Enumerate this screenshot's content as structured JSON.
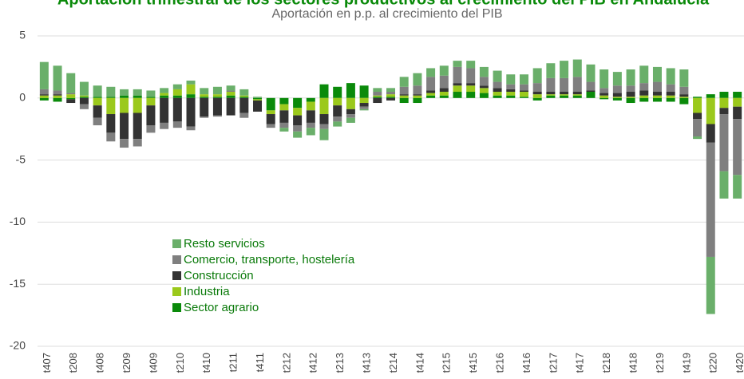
{
  "chart_data": {
    "type": "stacked_bar",
    "title": "Aportación trimestral de los sectores productivos al crecimiento del PIB en Andalucía",
    "subtitle": "Aportación en p.p. al crecimiento del PIB",
    "categories": [
      "t407",
      null,
      "t208",
      null,
      "t408",
      null,
      "t209",
      null,
      "t409",
      null,
      "t210",
      null,
      "t410",
      null,
      "t211",
      null,
      "t411",
      null,
      "t212",
      null,
      "t412",
      null,
      "t213",
      null,
      "t413",
      null,
      "t214",
      null,
      "t414",
      null,
      "t215",
      null,
      "t415",
      null,
      "t216",
      null,
      "t416",
      null,
      "t217",
      null,
      "t417",
      null,
      "t218",
      null,
      "t418",
      null,
      "t219",
      null,
      "t419",
      null,
      "t220",
      null,
      "t420"
    ],
    "series": [
      {
        "name": "Resto servicios",
        "color": "#6aaf6a",
        "values": [
          2.2,
          2.0,
          1.6,
          1.1,
          0.9,
          0.8,
          0.5,
          0.5,
          0.5,
          0.4,
          0.4,
          0.3,
          0.5,
          0.6,
          0.4,
          0.5,
          0.1,
          0.0,
          -0.3,
          -0.5,
          -0.6,
          -0.9,
          -0.4,
          -0.4,
          -0.1,
          0.3,
          0.3,
          0.8,
          1.0,
          0.7,
          0.8,
          0.5,
          0.6,
          0.8,
          0.9,
          0.8,
          0.8,
          1.2,
          1.2,
          1.4,
          1.4,
          1.4,
          1.5,
          1.1,
          1.3,
          1.4,
          1.2,
          1.3,
          1.4,
          -0.2,
          -4.6,
          -2.2,
          -1.9
        ]
      },
      {
        "name": "Comercio, transporte, hostelería",
        "color": "#7f7f7f",
        "values": [
          0.4,
          0.3,
          0.1,
          -0.4,
          -0.6,
          -0.7,
          -0.7,
          -0.6,
          -0.6,
          -0.5,
          -0.5,
          -0.3,
          -0.1,
          -0.1,
          0.1,
          -0.4,
          0.0,
          -0.3,
          -0.4,
          -0.5,
          -0.4,
          -0.4,
          -0.4,
          -0.3,
          -0.2,
          0.3,
          0.2,
          0.6,
          0.7,
          1.1,
          1.0,
          1.3,
          1.2,
          0.7,
          0.5,
          0.4,
          0.5,
          0.7,
          1.1,
          1.1,
          1.2,
          0.7,
          0.4,
          0.6,
          0.5,
          0.6,
          0.8,
          0.6,
          0.6,
          -1.4,
          -9.2,
          -4.6,
          -4.5
        ]
      },
      {
        "name": "Construcción",
        "color": "#333333",
        "values": [
          0.1,
          0.1,
          -0.3,
          -0.5,
          -1.0,
          -1.5,
          -2.1,
          -2.1,
          -1.6,
          -2.0,
          -1.9,
          -2.3,
          -1.5,
          -1.4,
          -1.4,
          -1.2,
          -0.9,
          -0.8,
          -1.0,
          -0.8,
          -1.0,
          -0.8,
          -0.9,
          -0.4,
          -0.3,
          -0.4,
          -0.2,
          0.1,
          0.1,
          0.2,
          0.3,
          0.2,
          0.2,
          0.2,
          0.3,
          0.2,
          0.1,
          0.2,
          0.2,
          0.2,
          0.2,
          0.1,
          0.2,
          0.3,
          0.4,
          0.4,
          0.3,
          0.3,
          0.2,
          -0.5,
          -1.5,
          -0.5,
          -1.0
        ]
      },
      {
        "name": "Industria",
        "color": "#9bc91c",
        "values": [
          0.2,
          0.2,
          0.3,
          0.1,
          -0.6,
          -1.3,
          -1.2,
          -1.2,
          -0.6,
          0.2,
          0.5,
          0.8,
          0.2,
          0.2,
          0.3,
          0.1,
          -0.1,
          -0.3,
          -0.5,
          -0.6,
          -0.7,
          -1.3,
          -0.6,
          -0.9,
          -0.4,
          0.1,
          0.2,
          0.2,
          0.2,
          0.2,
          0.3,
          0.5,
          0.5,
          0.4,
          0.3,
          0.3,
          0.4,
          0.3,
          0.1,
          0.1,
          0.1,
          0.0,
          0.2,
          0.1,
          0.1,
          0.2,
          0.2,
          0.2,
          0.1,
          -1.2,
          -2.1,
          -0.8,
          -0.7
        ]
      },
      {
        "name": "Sector agrario",
        "color": "#0a8a0a",
        "values": [
          -0.2,
          -0.3,
          -0.1,
          0.1,
          0.1,
          0.1,
          0.2,
          0.2,
          0.1,
          0.2,
          0.2,
          0.3,
          0.1,
          0.1,
          0.2,
          0.1,
          -0.1,
          -1.0,
          -0.5,
          -0.8,
          -0.3,
          1.1,
          0.9,
          1.2,
          1.0,
          0.1,
          0.1,
          -0.4,
          -0.4,
          0.2,
          0.2,
          0.5,
          0.5,
          0.4,
          0.2,
          0.2,
          0.1,
          -0.2,
          0.2,
          0.2,
          0.2,
          0.5,
          -0.1,
          -0.2,
          -0.4,
          -0.3,
          -0.3,
          -0.3,
          -0.5,
          0.1,
          0.3,
          0.5,
          0.5
        ]
      }
    ],
    "ylim": [
      -20,
      5
    ],
    "yticks": [
      5,
      0,
      -5,
      -10,
      -15,
      -20
    ],
    "grid": true
  }
}
